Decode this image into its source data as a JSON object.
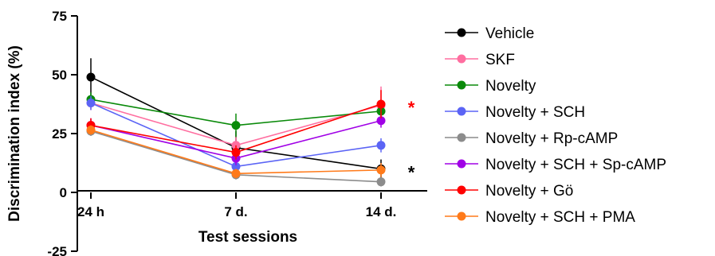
{
  "chart_data": {
    "type": "line",
    "title": "",
    "xlabel": "Test sessions",
    "ylabel": "Discrimination index (%)",
    "categories": [
      "24 h",
      "7 d.",
      "14 d."
    ],
    "ylim": [
      -25,
      75
    ],
    "yticks": [
      75,
      50,
      25,
      0,
      -25
    ],
    "grid": false,
    "legend_position": "right",
    "series": [
      {
        "name": "Vehicle",
        "color": "#000000",
        "values": [
          49,
          19,
          10
        ],
        "errors": [
          8,
          7,
          4
        ]
      },
      {
        "name": "SKF",
        "color": "#ff6ea0",
        "values": [
          38,
          20,
          37
        ],
        "errors": [
          3,
          4,
          8
        ]
      },
      {
        "name": "Novelty",
        "color": "#0a8a0a",
        "values": [
          39.5,
          28.5,
          34.5
        ],
        "errors": [
          3,
          5,
          3
        ]
      },
      {
        "name": "Novelty + SCH",
        "color": "#5b64f5",
        "values": [
          38,
          11,
          20
        ],
        "errors": [
          3,
          3,
          3
        ]
      },
      {
        "name": "Novelty + Rp-cAMP",
        "color": "#8c8c8c",
        "values": [
          26,
          7.5,
          4.5
        ],
        "errors": [
          2,
          2,
          2
        ]
      },
      {
        "name": "Novelty + SCH + Sp-cAMP",
        "color": "#a000e6",
        "values": [
          28.5,
          14.5,
          30.5
        ],
        "errors": [
          3,
          3,
          3
        ]
      },
      {
        "name": "Novelty + Gö",
        "color": "#ff0000",
        "values": [
          28.5,
          17,
          37.5
        ],
        "errors": [
          3,
          3,
          6
        ]
      },
      {
        "name": "Novelty + SCH + PMA",
        "color": "#ff7a1a",
        "values": [
          26.5,
          8,
          9.5
        ],
        "errors": [
          2,
          2,
          3
        ]
      }
    ],
    "annotations": [
      {
        "text": "*",
        "color": "#ff0000",
        "near_series": "Novelty + Gö",
        "category": "14 d."
      },
      {
        "text": "*",
        "color": "#000000",
        "near_series": "Vehicle",
        "category": "14 d."
      }
    ]
  }
}
